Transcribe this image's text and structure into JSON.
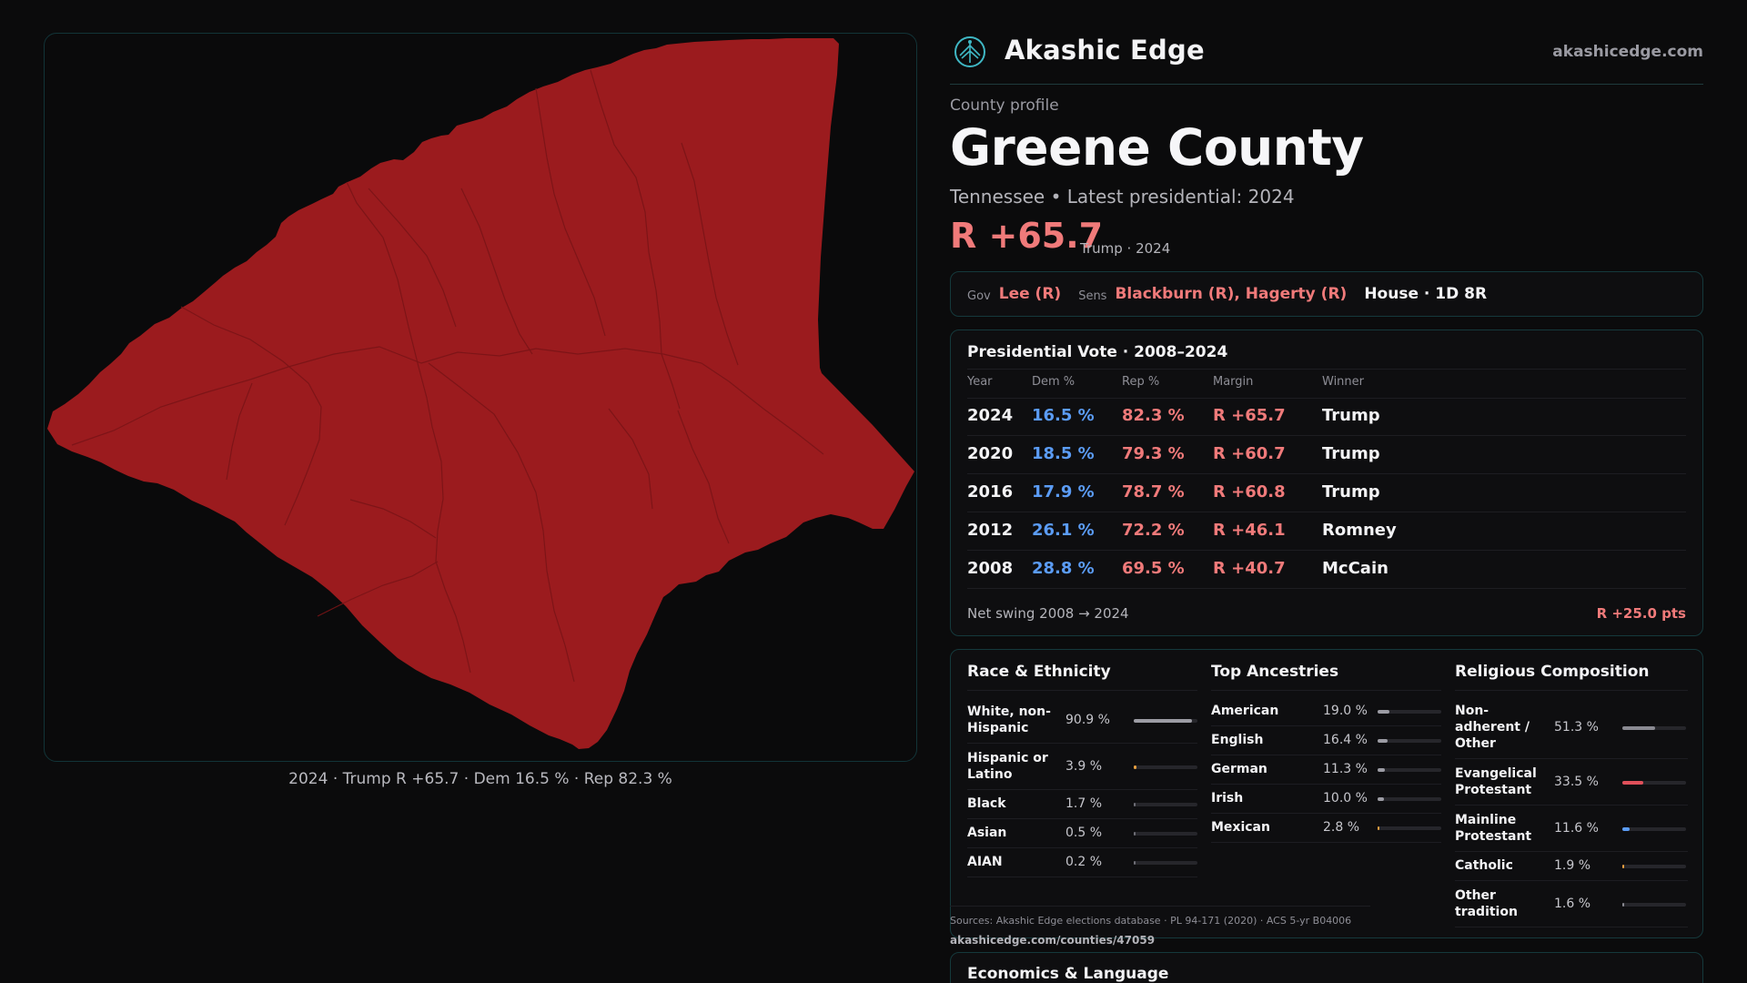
{
  "map": {
    "caption": "2024 · Trump R +65.7 · Dem 16.5 % · Rep 82.3 %",
    "fill_color": "#9b1b1e"
  },
  "header": {
    "brand": "Akashic Edge",
    "site": "akashicedge.com",
    "logo_icon": "tree-globe-icon"
  },
  "profile": {
    "eyebrow": "County profile",
    "title": "Greene County",
    "subtitle": "Tennessee • Latest presidential: 2024",
    "margin": "R +65.7",
    "margin_note": "Trump · 2024"
  },
  "officials": {
    "gov_label": "Gov",
    "gov": "Lee (R)",
    "sens_label": "Sens",
    "sens": "Blackburn (R), Hagerty (R)",
    "house": "House · 1D 8R"
  },
  "presidential": {
    "title": "Presidential Vote · 2008–2024",
    "headers": {
      "year": "Year",
      "dem": "Dem %",
      "rep": "Rep %",
      "margin": "Margin",
      "winner": "Winner"
    },
    "rows": [
      {
        "year": "2024",
        "dem": "16.5 %",
        "rep": "82.3 %",
        "margin": "R +65.7",
        "winner": "Trump"
      },
      {
        "year": "2020",
        "dem": "18.5 %",
        "rep": "79.3 %",
        "margin": "R +60.7",
        "winner": "Trump"
      },
      {
        "year": "2016",
        "dem": "17.9 %",
        "rep": "78.7 %",
        "margin": "R +60.8",
        "winner": "Trump"
      },
      {
        "year": "2012",
        "dem": "26.1 %",
        "rep": "72.2 %",
        "margin": "R +46.1",
        "winner": "Romney"
      },
      {
        "year": "2008",
        "dem": "28.8 %",
        "rep": "69.5 %",
        "margin": "R +40.7",
        "winner": "McCain"
      }
    ],
    "swing_label": "Net swing 2008 → 2024",
    "swing_value": "R +25.0 pts"
  },
  "race": {
    "title": "Race & Ethnicity",
    "items": [
      {
        "label": "White, non-Hispanic",
        "value": "90.9 %",
        "fraction": 0.909,
        "color": "#9c9ca4"
      },
      {
        "label": "Hispanic or Latino",
        "value": "3.9 %",
        "fraction": 0.039,
        "color": "#e8a040"
      },
      {
        "label": "Black",
        "value": "1.7 %",
        "fraction": 0.017,
        "color": "#6e6e76"
      },
      {
        "label": "Asian",
        "value": "0.5 %",
        "fraction": 0.005,
        "color": "#6e6e76"
      },
      {
        "label": "AIAN",
        "value": "0.2 %",
        "fraction": 0.002,
        "color": "#6e6e76"
      }
    ]
  },
  "ancestry": {
    "title": "Top Ancestries",
    "items": [
      {
        "label": "American",
        "value": "19.0 %",
        "fraction": 0.19,
        "color": "#9c9ca4"
      },
      {
        "label": "English",
        "value": "16.4 %",
        "fraction": 0.164,
        "color": "#9c9ca4"
      },
      {
        "label": "German",
        "value": "11.3 %",
        "fraction": 0.113,
        "color": "#9c9ca4"
      },
      {
        "label": "Irish",
        "value": "10.0 %",
        "fraction": 0.1,
        "color": "#9c9ca4"
      },
      {
        "label": "Mexican",
        "value": "2.8 %",
        "fraction": 0.028,
        "color": "#e8a040"
      }
    ]
  },
  "religion": {
    "title": "Religious Composition",
    "items": [
      {
        "label": "Non-adherent / Other",
        "value": "51.3 %",
        "fraction": 0.513,
        "color": "#8a8a92"
      },
      {
        "label": "Evangelical Protestant",
        "value": "33.5 %",
        "fraction": 0.335,
        "color": "#e0505a"
      },
      {
        "label": "Mainline Protestant",
        "value": "11.6 %",
        "fraction": 0.116,
        "color": "#5b9cf5"
      },
      {
        "label": "Catholic",
        "value": "1.9 %",
        "fraction": 0.019,
        "color": "#e8a040"
      },
      {
        "label": "Other tradition",
        "value": "1.6 %",
        "fraction": 0.016,
        "color": "#8a8a92"
      }
    ]
  },
  "sources": {
    "text": "Sources: Akashic Edge elections database · PL 94-171 (2020) · ACS 5-yr B04006",
    "url": "akashicedge.com/counties/47059"
  },
  "economics": {
    "title": "Economics & Language"
  }
}
